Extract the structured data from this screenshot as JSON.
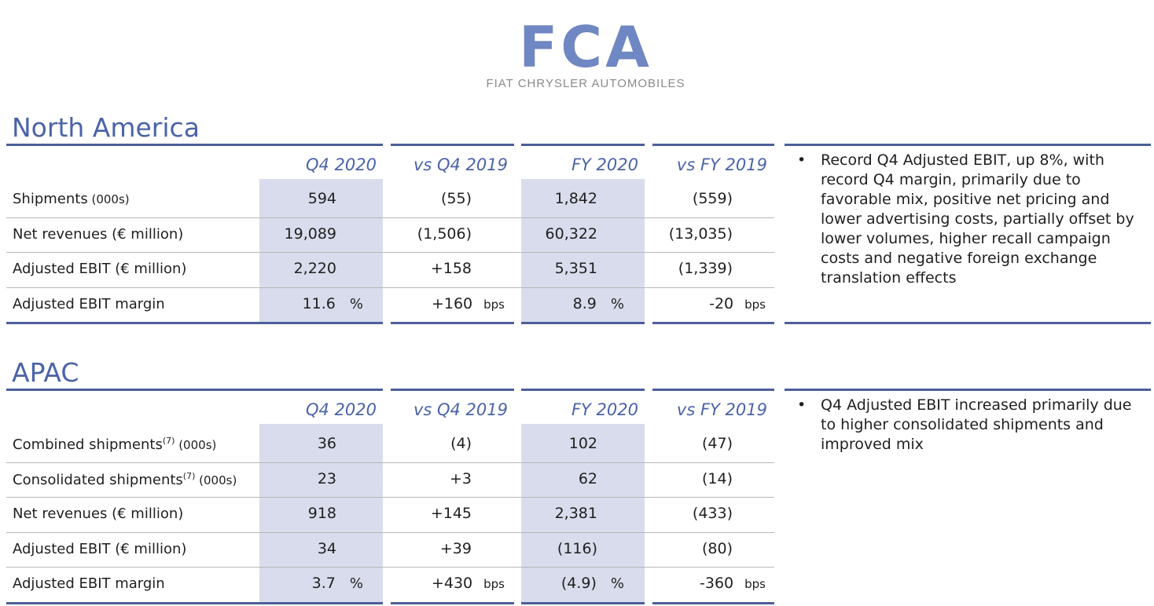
{
  "logo": {
    "wordmark": "FCA",
    "subtitle": "FIAT CHRYSLER AUTOMOBILES",
    "color": "#6f87c2"
  },
  "columns": [
    "Q4 2020",
    "vs Q4 2019",
    "FY 2020",
    "vs FY 2019"
  ],
  "sections": [
    {
      "title": "North America",
      "rows": [
        {
          "label": "Shipments",
          "unit": "(000s)",
          "sup": "",
          "values": [
            "594",
            "(55)",
            "1,842",
            "(559)"
          ],
          "suffixes": [
            "",
            "",
            "",
            ""
          ]
        },
        {
          "label": "Net revenues (€ million)",
          "unit": "",
          "sup": "",
          "values": [
            "19,089",
            "(1,506)",
            "60,322",
            "(13,035)"
          ],
          "suffixes": [
            "",
            "",
            "",
            ""
          ]
        },
        {
          "label": "Adjusted EBIT (€ million)",
          "unit": "",
          "sup": "",
          "values": [
            "2,220",
            "+158",
            "5,351",
            "(1,339)"
          ],
          "suffixes": [
            "",
            "",
            "",
            ""
          ]
        },
        {
          "label": "Adjusted EBIT margin",
          "unit": "",
          "sup": "",
          "values": [
            "11.6",
            "+160",
            "8.9",
            "-20"
          ],
          "suffixes": [
            "%",
            "bps",
            "%",
            "bps"
          ]
        }
      ],
      "note": "Record Q4 Adjusted EBIT, up 8%, with record Q4 margin, primarily due to favorable mix, positive net pricing and lower advertising costs, partially offset by lower volumes, higher recall campaign costs and negative foreign exchange translation effects"
    },
    {
      "title": "APAC",
      "rows": [
        {
          "label": "Combined shipments",
          "unit": "(000s)",
          "sup": "(7)",
          "values": [
            "36",
            "(4)",
            "102",
            "(47)"
          ],
          "suffixes": [
            "",
            "",
            "",
            ""
          ]
        },
        {
          "label": "Consolidated shipments",
          "unit": "(000s)",
          "sup": "(7)",
          "values": [
            "23",
            "+3",
            "62",
            "(14)"
          ],
          "suffixes": [
            "",
            "",
            "",
            ""
          ]
        },
        {
          "label": "Net revenues (€ million)",
          "unit": "",
          "sup": "",
          "values": [
            "918",
            "+145",
            "2,381",
            "(433)"
          ],
          "suffixes": [
            "",
            "",
            "",
            ""
          ]
        },
        {
          "label": "Adjusted EBIT (€ million)",
          "unit": "",
          "sup": "",
          "values": [
            "34",
            "+39",
            "(116)",
            "(80)"
          ],
          "suffixes": [
            "",
            "",
            "",
            ""
          ]
        },
        {
          "label": "Adjusted EBIT margin",
          "unit": "",
          "sup": "",
          "values": [
            "3.7",
            "+430",
            "(4.9)",
            "-360"
          ],
          "suffixes": [
            "%",
            "bps",
            "%",
            "bps"
          ]
        }
      ],
      "note": "Q4 Adjusted EBIT increased primarily due to higher consolidated shipments and improved mix"
    }
  ],
  "colors": {
    "accent": "#4b64a8",
    "rule": "#4b5f9a",
    "shade": "#d9dcec"
  }
}
